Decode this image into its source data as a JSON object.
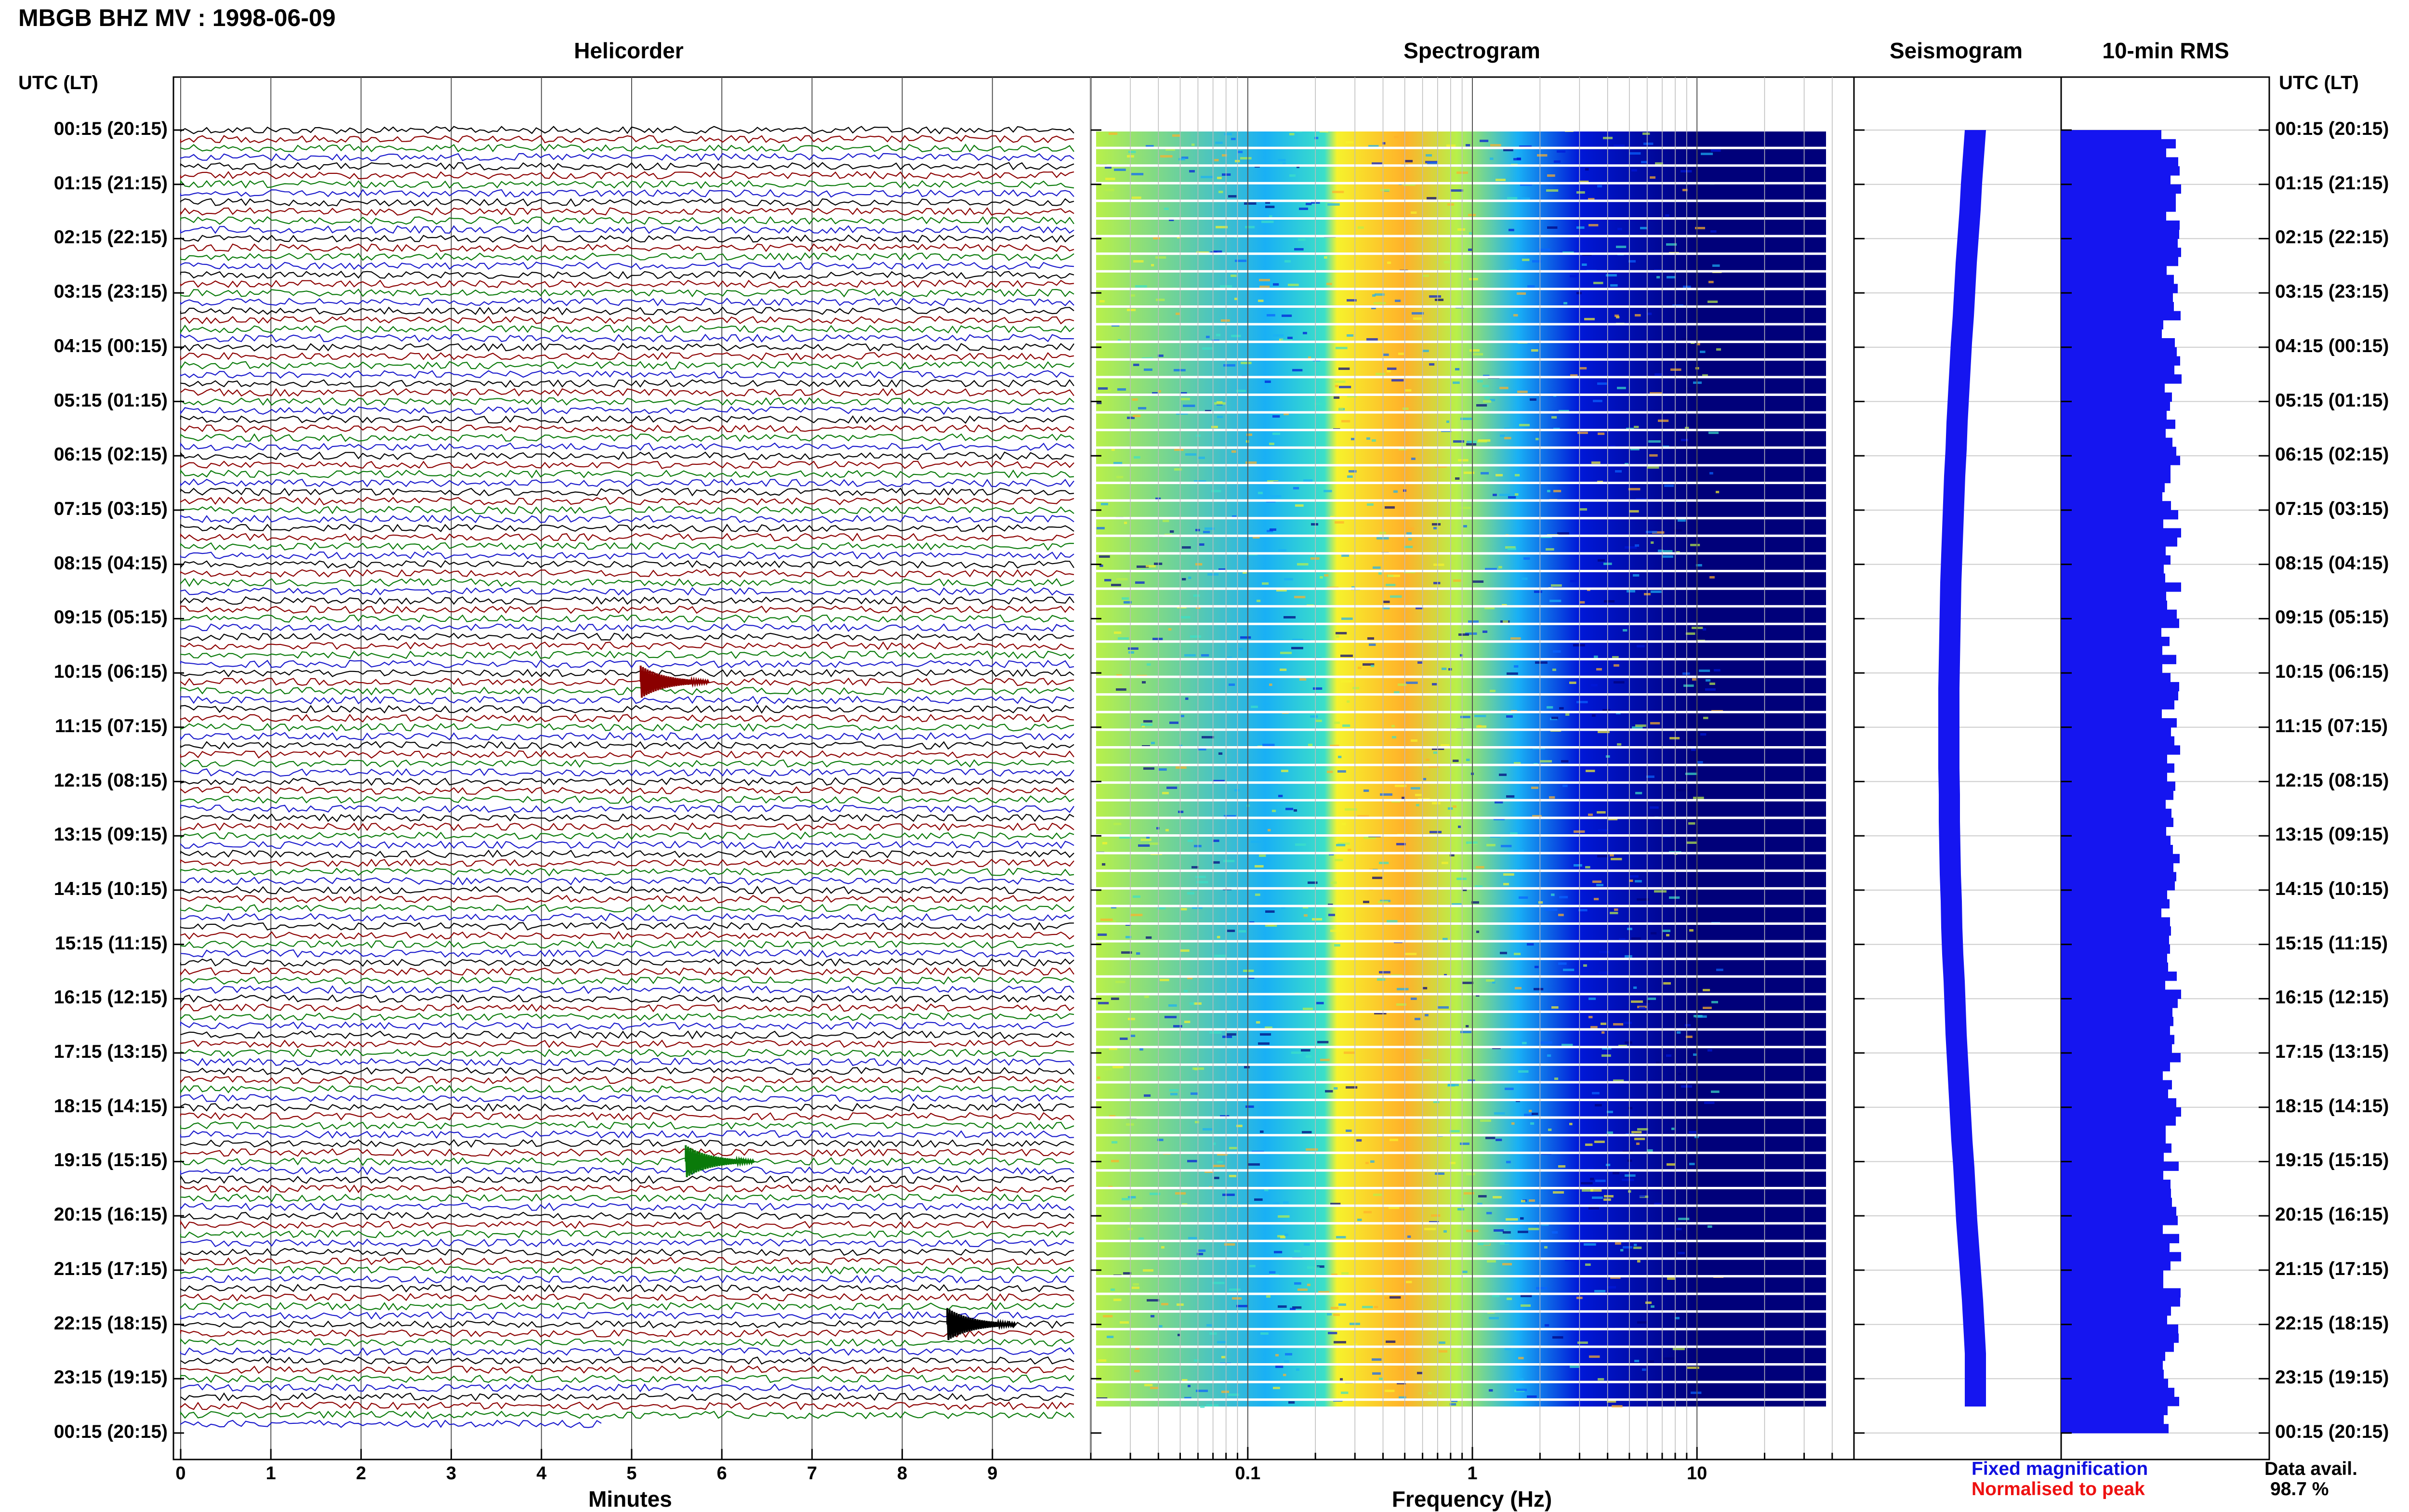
{
  "title": "MBGB BHZ MV : 1998-06-09",
  "left_axis_header": "UTC (LT)",
  "right_axis_header": "UTC (LT)",
  "panel_titles": {
    "helicorder": "Helicorder",
    "spectrogram": "Spectrogram",
    "seismogram": "Seismogram",
    "rms": "10-min RMS"
  },
  "x_labels": {
    "helicorder": "Minutes",
    "spectrogram": "Frequency (Hz)"
  },
  "time_labels": [
    "00:15 (20:15)",
    "01:15 (21:15)",
    "02:15 (22:15)",
    "03:15 (23:15)",
    "04:15 (00:15)",
    "05:15 (01:15)",
    "06:15 (02:15)",
    "07:15 (03:15)",
    "08:15 (04:15)",
    "09:15 (05:15)",
    "10:15 (06:15)",
    "11:15 (07:15)",
    "12:15 (08:15)",
    "13:15 (09:15)",
    "14:15 (10:15)",
    "15:15 (11:15)",
    "16:15 (12:15)",
    "17:15 (13:15)",
    "18:15 (14:15)",
    "19:15 (15:15)",
    "20:15 (16:15)",
    "21:15 (17:15)",
    "22:15 (18:15)",
    "23:15 (19:15)",
    "00:15 (20:15)"
  ],
  "legend": {
    "fixed": "Fixed magnification",
    "normalised": "Normalised to peak",
    "fixed_color": "#1010e0",
    "normalised_color": "#ee1111"
  },
  "data_avail": {
    "label": "Data avail.",
    "value": "98.7 %"
  },
  "chart_data": [
    {
      "type": "line",
      "name": "helicorder",
      "title": "Helicorder",
      "xlabel": "Minutes",
      "ylabel": "UTC (LT)",
      "xlim": [
        0,
        10
      ],
      "x_ticks": [
        "0",
        "1",
        "2",
        "3",
        "4",
        "5",
        "6",
        "7",
        "8",
        "9"
      ],
      "rows": 144,
      "minutes_per_row": 10,
      "trace_colors": [
        "#000000",
        "#8b0000",
        "#0a7a0a",
        "#1a1acc"
      ],
      "last_row_coverage_minutes": 4.7,
      "events": [
        {
          "utc": "10:15",
          "row": 61,
          "minute": 5.1,
          "color": "#8b0000"
        },
        {
          "utc": "19:15",
          "row": 114,
          "minute": 5.6,
          "color": "#0a7a0a"
        },
        {
          "utc": "22:15",
          "row": 132,
          "minute": 8.5,
          "color": "#000000"
        }
      ],
      "grid": true
    },
    {
      "type": "heatmap",
      "name": "spectrogram",
      "title": "Spectrogram",
      "xlabel": "Frequency (Hz)",
      "x_scale": "log",
      "xlim": [
        0.02,
        50
      ],
      "x_ticks": [
        "0.1",
        "1",
        "10"
      ],
      "colormap": [
        "#00007a",
        "#0018d8",
        "#0a64ff",
        "#19b0f5",
        "#3ce0c8",
        "#b8f04a",
        "#f6f22c",
        "#ffb12a"
      ],
      "peak_band_hz": [
        0.25,
        0.8
      ]
    },
    {
      "type": "area",
      "name": "seismogram",
      "title": "Seismogram",
      "daily_trend": "narrow band; maximum mid-day, minimum at night"
    },
    {
      "type": "bar",
      "name": "10-min RMS",
      "title": "10-min RMS",
      "orientation": "horizontal",
      "intervals": 144,
      "relative_level_range": [
        0.48,
        0.58
      ]
    }
  ]
}
